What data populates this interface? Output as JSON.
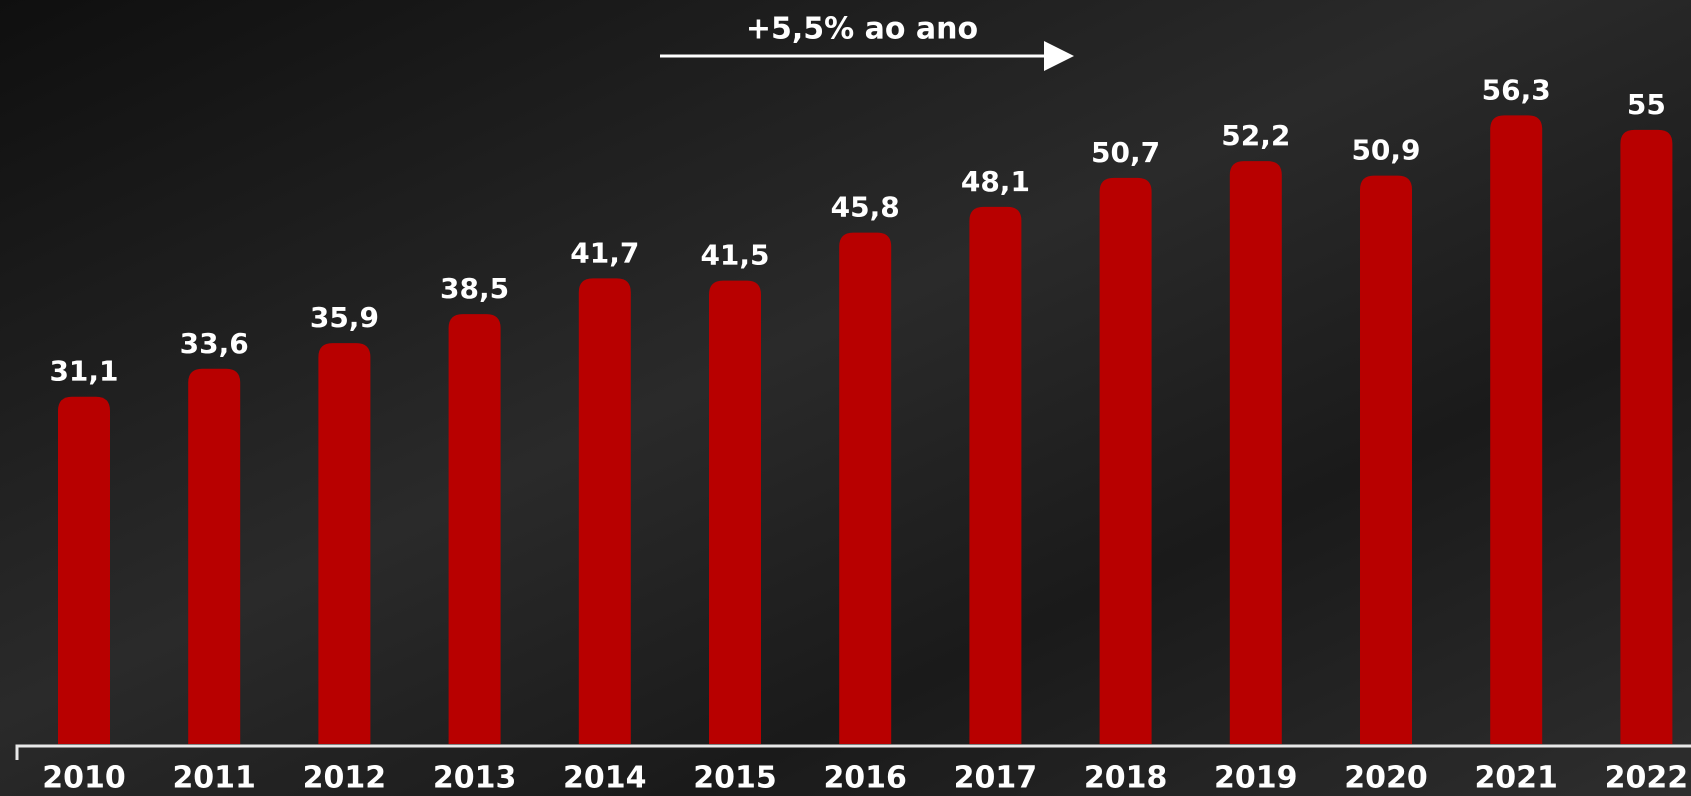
{
  "chart_data": {
    "type": "bar",
    "annotation": "+5,5% ao ano",
    "categories": [
      "2010",
      "2011",
      "2012",
      "2013",
      "2014",
      "2015",
      "2016",
      "2017",
      "2018",
      "2019",
      "2020",
      "2021",
      "2022"
    ],
    "values": [
      31.1,
      33.6,
      35.9,
      38.5,
      41.7,
      41.5,
      45.8,
      48.1,
      50.7,
      52.2,
      50.9,
      56.3,
      55
    ],
    "value_labels": [
      "31,1",
      "33,6",
      "35,9",
      "38,5",
      "41,7",
      "41,5",
      "45,8",
      "48,1",
      "50,7",
      "52,2",
      "50,9",
      "56,3",
      "55"
    ],
    "color": "#b80000",
    "ylim": [
      0,
      60
    ]
  }
}
